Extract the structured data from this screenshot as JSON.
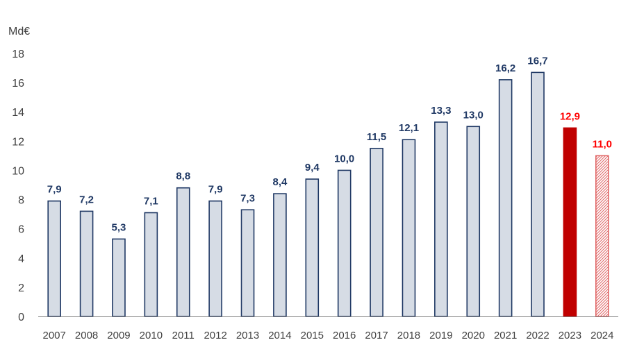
{
  "chart_data": {
    "type": "bar",
    "title": "",
    "unit_label": "Md€",
    "xlabel": "",
    "ylabel": "",
    "ylim": [
      0,
      18
    ],
    "yticks": [
      "0",
      "2",
      "4",
      "6",
      "8",
      "10",
      "12",
      "14",
      "16",
      "18"
    ],
    "grid": false,
    "legend": "none",
    "categories": [
      "2007",
      "2008",
      "2009",
      "2010",
      "2011",
      "2012",
      "2013",
      "2014",
      "2015",
      "2016",
      "2017",
      "2018",
      "2019",
      "2020",
      "2021",
      "2022",
      "2023",
      "2024"
    ],
    "values": [
      7.9,
      7.2,
      5.3,
      7.1,
      8.8,
      7.9,
      7.3,
      8.4,
      9.4,
      10.0,
      11.5,
      12.1,
      13.3,
      13.0,
      16.2,
      16.7,
      12.9,
      11.0
    ],
    "data_labels": [
      "7,9",
      "7,2",
      "5,3",
      "7,1",
      "8,8",
      "7,9",
      "7,3",
      "8,4",
      "9,4",
      "10,0",
      "11,5",
      "12,1",
      "13,3",
      "13,0",
      "16,2",
      "16,7",
      "12,9",
      "11,0"
    ],
    "bar_styles": [
      "normal",
      "normal",
      "normal",
      "normal",
      "normal",
      "normal",
      "normal",
      "normal",
      "normal",
      "normal",
      "normal",
      "normal",
      "normal",
      "normal",
      "normal",
      "normal",
      "highlight",
      "hatched"
    ],
    "colors": {
      "bar_fill": "#d6dce5",
      "bar_stroke": "#1f3864",
      "label": "#1f3864",
      "highlight_fill": "#c00000",
      "highlight_label": "#ff0000",
      "hatch": "#e06666",
      "axis": "#808080",
      "tick_text": "#404040"
    }
  }
}
